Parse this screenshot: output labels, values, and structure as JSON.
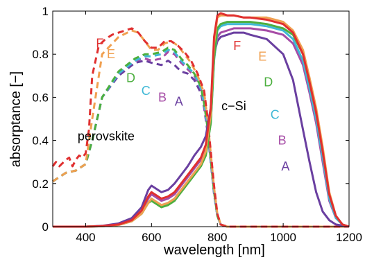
{
  "chart_data": {
    "type": "line",
    "title": "",
    "xlabel": "wavelength [nm]",
    "ylabel": "absorptance [−]",
    "xlim": [
      300,
      1200
    ],
    "ylim": [
      0,
      1
    ],
    "xticks": [
      400,
      600,
      800,
      1000,
      1200
    ],
    "yticks": [
      0,
      0.2,
      0.4,
      0.6,
      0.8,
      1
    ],
    "yticklabels": [
      "0",
      "0.2",
      "0.4",
      "0.6",
      "0.8",
      "1"
    ],
    "grid": false,
    "annotations": [
      {
        "text": "perovskite",
        "x": 462,
        "y": 0.42,
        "color": "#000000"
      },
      {
        "text": "c−Si",
        "x": 850,
        "y": 0.56,
        "color": "#000000"
      }
    ],
    "series": [
      {
        "name": "A",
        "color": "#6a3fa0",
        "layer": "perovskite",
        "dashed": true,
        "label_at": [
          683,
          0.58
        ],
        "x": [
          300,
          340,
          370,
          400,
          420,
          450,
          500,
          550,
          580,
          600,
          630,
          650,
          670,
          690,
          710,
          730,
          750,
          760,
          770,
          780,
          790,
          800,
          810,
          830,
          1200
        ],
        "y": [
          0.21,
          0.25,
          0.26,
          0.29,
          0.4,
          0.6,
          0.7,
          0.76,
          0.77,
          0.76,
          0.75,
          0.77,
          0.75,
          0.72,
          0.71,
          0.68,
          0.62,
          0.55,
          0.44,
          0.3,
          0.15,
          0.05,
          0.01,
          0,
          0
        ]
      },
      {
        "name": "B",
        "color": "#a64ca6",
        "layer": "perovskite",
        "dashed": true,
        "label_at": [
          633,
          0.6
        ],
        "x": [
          300,
          340,
          370,
          400,
          420,
          450,
          500,
          550,
          580,
          600,
          630,
          650,
          670,
          690,
          710,
          730,
          750,
          760,
          770,
          780,
          790,
          800,
          810,
          830,
          1200
        ],
        "y": [
          0.21,
          0.25,
          0.26,
          0.29,
          0.4,
          0.6,
          0.71,
          0.77,
          0.78,
          0.77,
          0.78,
          0.81,
          0.8,
          0.76,
          0.73,
          0.7,
          0.64,
          0.56,
          0.45,
          0.31,
          0.16,
          0.05,
          0.01,
          0,
          0
        ]
      },
      {
        "name": "C",
        "color": "#3fb8d6",
        "layer": "perovskite",
        "dashed": true,
        "label_at": [
          583,
          0.63
        ],
        "x": [
          300,
          340,
          370,
          400,
          420,
          450,
          500,
          550,
          580,
          600,
          630,
          650,
          670,
          690,
          710,
          730,
          750,
          760,
          770,
          780,
          790,
          800,
          810,
          830,
          1200
        ],
        "y": [
          0.21,
          0.25,
          0.26,
          0.29,
          0.4,
          0.6,
          0.71,
          0.77,
          0.79,
          0.79,
          0.8,
          0.82,
          0.81,
          0.77,
          0.74,
          0.71,
          0.64,
          0.57,
          0.46,
          0.31,
          0.16,
          0.05,
          0.01,
          0,
          0
        ]
      },
      {
        "name": "D",
        "color": "#4caf3f",
        "layer": "perovskite",
        "dashed": true,
        "label_at": [
          537,
          0.69
        ],
        "x": [
          300,
          340,
          370,
          400,
          420,
          450,
          500,
          550,
          580,
          600,
          630,
          650,
          670,
          690,
          710,
          730,
          750,
          760,
          770,
          780,
          790,
          800,
          810,
          830,
          1200
        ],
        "y": [
          0.21,
          0.25,
          0.26,
          0.29,
          0.4,
          0.6,
          0.72,
          0.78,
          0.8,
          0.8,
          0.81,
          0.83,
          0.82,
          0.78,
          0.75,
          0.71,
          0.65,
          0.57,
          0.46,
          0.31,
          0.16,
          0.05,
          0.01,
          0,
          0
        ]
      },
      {
        "name": "E",
        "color": "#f0a050",
        "layer": "perovskite",
        "dashed": true,
        "label_at": [
          477,
          0.8
        ],
        "x": [
          300,
          340,
          370,
          400,
          420,
          450,
          500,
          540,
          560,
          580,
          600,
          620,
          640,
          660,
          680,
          700,
          720,
          740,
          760,
          770,
          780,
          790,
          800,
          810,
          830,
          1200
        ],
        "y": [
          0.21,
          0.25,
          0.26,
          0.29,
          0.5,
          0.8,
          0.88,
          0.91,
          0.9,
          0.86,
          0.82,
          0.82,
          0.85,
          0.86,
          0.84,
          0.8,
          0.76,
          0.7,
          0.62,
          0.5,
          0.34,
          0.18,
          0.06,
          0.01,
          0,
          0
        ]
      },
      {
        "name": "F",
        "color": "#e03030",
        "layer": "perovskite",
        "dashed": true,
        "label_at": [
          443,
          0.85
        ],
        "x": [
          300,
          310,
          320,
          340,
          350,
          360,
          370,
          380,
          390,
          400,
          410,
          420,
          440,
          460,
          480,
          500,
          520,
          540,
          560,
          580,
          600,
          620,
          640,
          660,
          680,
          700,
          720,
          740,
          760,
          770,
          780,
          790,
          800,
          810,
          830,
          1200
        ],
        "y": [
          0.28,
          0.3,
          0.28,
          0.31,
          0.32,
          0.28,
          0.31,
          0.33,
          0.32,
          0.34,
          0.45,
          0.7,
          0.84,
          0.87,
          0.89,
          0.9,
          0.91,
          0.92,
          0.9,
          0.86,
          0.83,
          0.83,
          0.86,
          0.86,
          0.84,
          0.81,
          0.77,
          0.71,
          0.63,
          0.51,
          0.35,
          0.19,
          0.06,
          0.01,
          0,
          0
        ]
      },
      {
        "name": "A",
        "color": "#6a3fa0",
        "layer": "c-Si",
        "dashed": false,
        "label_at": [
          1007,
          0.28
        ],
        "x": [
          300,
          400,
          450,
          500,
          540,
          570,
          590,
          600,
          610,
          630,
          650,
          670,
          690,
          710,
          730,
          750,
          765,
          780,
          790,
          800,
          810,
          830,
          850,
          880,
          900,
          950,
          1000,
          1030,
          1060,
          1080,
          1100,
          1120,
          1140,
          1160,
          1200
        ],
        "y": [
          0,
          0,
          0.004,
          0.015,
          0.04,
          0.09,
          0.17,
          0.19,
          0.18,
          0.16,
          0.17,
          0.2,
          0.24,
          0.28,
          0.33,
          0.37,
          0.42,
          0.55,
          0.8,
          0.86,
          0.88,
          0.89,
          0.9,
          0.9,
          0.89,
          0.87,
          0.8,
          0.68,
          0.45,
          0.3,
          0.16,
          0.07,
          0.03,
          0.01,
          0
        ]
      },
      {
        "name": "B",
        "color": "#a64ca6",
        "layer": "c-Si",
        "dashed": false,
        "label_at": [
          997,
          0.4
        ],
        "x": [
          300,
          400,
          450,
          500,
          540,
          570,
          590,
          600,
          610,
          630,
          650,
          670,
          690,
          710,
          730,
          750,
          765,
          780,
          790,
          800,
          810,
          830,
          850,
          880,
          900,
          950,
          1000,
          1030,
          1060,
          1080,
          1100,
          1120,
          1140,
          1160,
          1180,
          1200
        ],
        "y": [
          0,
          0,
          0.003,
          0.01,
          0.03,
          0.07,
          0.13,
          0.15,
          0.14,
          0.12,
          0.13,
          0.15,
          0.19,
          0.23,
          0.27,
          0.31,
          0.36,
          0.5,
          0.78,
          0.88,
          0.9,
          0.91,
          0.92,
          0.92,
          0.92,
          0.91,
          0.89,
          0.85,
          0.75,
          0.62,
          0.48,
          0.3,
          0.12,
          0.04,
          0.01,
          0
        ]
      },
      {
        "name": "C",
        "color": "#3fb8d6",
        "layer": "c-Si",
        "dashed": false,
        "label_at": [
          975,
          0.52
        ],
        "x": [
          300,
          400,
          450,
          500,
          540,
          570,
          590,
          600,
          610,
          630,
          650,
          670,
          690,
          710,
          730,
          750,
          765,
          780,
          790,
          800,
          810,
          830,
          850,
          880,
          900,
          950,
          1000,
          1030,
          1060,
          1080,
          1100,
          1120,
          1140,
          1160,
          1180,
          1200
        ],
        "y": [
          0,
          0,
          0.002,
          0.008,
          0.025,
          0.06,
          0.11,
          0.13,
          0.12,
          0.1,
          0.11,
          0.13,
          0.17,
          0.21,
          0.25,
          0.29,
          0.34,
          0.48,
          0.77,
          0.91,
          0.93,
          0.94,
          0.94,
          0.94,
          0.94,
          0.93,
          0.91,
          0.87,
          0.77,
          0.64,
          0.5,
          0.32,
          0.13,
          0.04,
          0.01,
          0
        ]
      },
      {
        "name": "D",
        "color": "#4caf3f",
        "layer": "c-Si",
        "dashed": false,
        "label_at": [
          955,
          0.67
        ],
        "x": [
          300,
          400,
          450,
          500,
          540,
          570,
          590,
          600,
          610,
          630,
          650,
          670,
          690,
          710,
          730,
          750,
          765,
          780,
          790,
          800,
          810,
          830,
          850,
          880,
          900,
          950,
          1000,
          1030,
          1060,
          1080,
          1100,
          1120,
          1140,
          1160,
          1180,
          1200
        ],
        "y": [
          0,
          0,
          0.002,
          0.008,
          0.025,
          0.06,
          0.11,
          0.12,
          0.11,
          0.09,
          0.1,
          0.12,
          0.16,
          0.2,
          0.24,
          0.28,
          0.33,
          0.48,
          0.78,
          0.92,
          0.94,
          0.95,
          0.95,
          0.95,
          0.95,
          0.94,
          0.92,
          0.89,
          0.8,
          0.67,
          0.53,
          0.35,
          0.15,
          0.05,
          0.01,
          0
        ]
      },
      {
        "name": "E",
        "color": "#f0a050",
        "layer": "c-Si",
        "dashed": false,
        "label_at": [
          937,
          0.79
        ],
        "x": [
          300,
          400,
          450,
          500,
          540,
          570,
          590,
          600,
          610,
          630,
          650,
          670,
          690,
          710,
          730,
          750,
          765,
          780,
          790,
          800,
          810,
          830,
          850,
          880,
          900,
          950,
          1000,
          1030,
          1060,
          1080,
          1100,
          1120,
          1140,
          1160,
          1180,
          1200
        ],
        "y": [
          0,
          0,
          0.002,
          0.008,
          0.025,
          0.06,
          0.11,
          0.13,
          0.12,
          0.1,
          0.11,
          0.13,
          0.17,
          0.21,
          0.25,
          0.29,
          0.35,
          0.52,
          0.85,
          0.97,
          0.98,
          0.98,
          0.98,
          0.97,
          0.97,
          0.97,
          0.95,
          0.91,
          0.82,
          0.69,
          0.55,
          0.37,
          0.16,
          0.05,
          0.01,
          0
        ]
      },
      {
        "name": "F",
        "color": "#e03030",
        "layer": "c-Si",
        "dashed": false,
        "label_at": [
          860,
          0.84
        ],
        "x": [
          300,
          400,
          450,
          500,
          540,
          570,
          590,
          600,
          610,
          630,
          650,
          670,
          690,
          710,
          730,
          750,
          765,
          780,
          790,
          800,
          810,
          830,
          850,
          880,
          900,
          950,
          1000,
          1030,
          1060,
          1080,
          1100,
          1120,
          1140,
          1160,
          1180,
          1200
        ],
        "y": [
          0,
          0,
          0.003,
          0.01,
          0.03,
          0.075,
          0.14,
          0.16,
          0.15,
          0.13,
          0.14,
          0.16,
          0.2,
          0.24,
          0.28,
          0.32,
          0.38,
          0.55,
          0.88,
          0.98,
          0.99,
          0.98,
          0.98,
          0.97,
          0.97,
          0.96,
          0.94,
          0.9,
          0.8,
          0.67,
          0.53,
          0.35,
          0.15,
          0.05,
          0.01,
          0
        ]
      }
    ]
  }
}
